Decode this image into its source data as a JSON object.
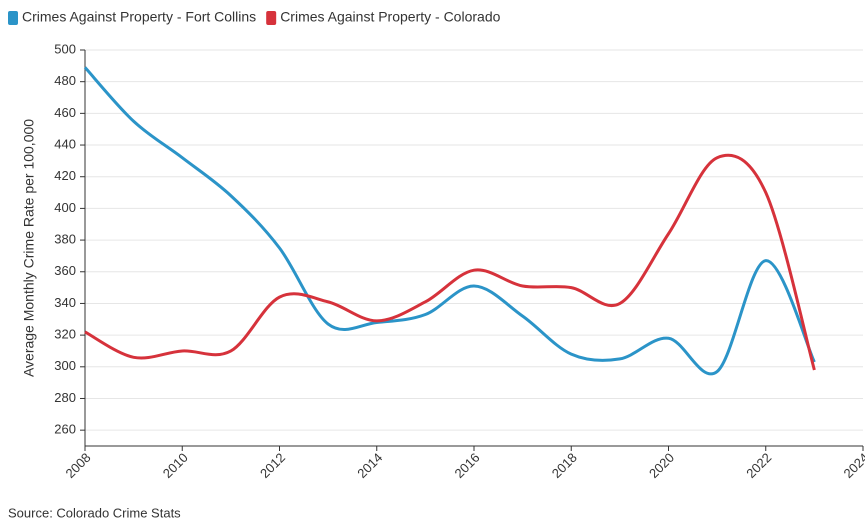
{
  "chart_data": {
    "type": "line",
    "y_label": "Average Monthly Crime Rate per 100,000",
    "source": "Source: Colorado Crime Stats",
    "x": [
      2008,
      2009,
      2010,
      2011,
      2012,
      2013,
      2014,
      2015,
      2016,
      2017,
      2018,
      2019,
      2020,
      2021,
      2022,
      2023
    ],
    "series": [
      {
        "name": "Crimes Against Property - Fort Collins",
        "color": "#2b94c8",
        "values": [
          489,
          455,
          432,
          408,
          375,
          327,
          328,
          333,
          351,
          332,
          308,
          305,
          318,
          297,
          367,
          303
        ]
      },
      {
        "name": "Crimes Against Property - Colorado",
        "color": "#d6323b",
        "values": [
          322,
          306,
          310,
          310,
          344,
          341,
          329,
          341,
          361,
          351,
          350,
          340,
          384,
          432,
          410,
          298
        ]
      }
    ],
    "xlim": [
      2008,
      2024
    ],
    "xticks": [
      2008,
      2010,
      2012,
      2014,
      2016,
      2018,
      2020,
      2022,
      2024
    ],
    "ylim": [
      250,
      500
    ],
    "yticks": [
      260,
      280,
      300,
      320,
      340,
      360,
      380,
      400,
      420,
      440,
      460,
      480,
      500
    ],
    "grid": true,
    "legend": "top"
  }
}
